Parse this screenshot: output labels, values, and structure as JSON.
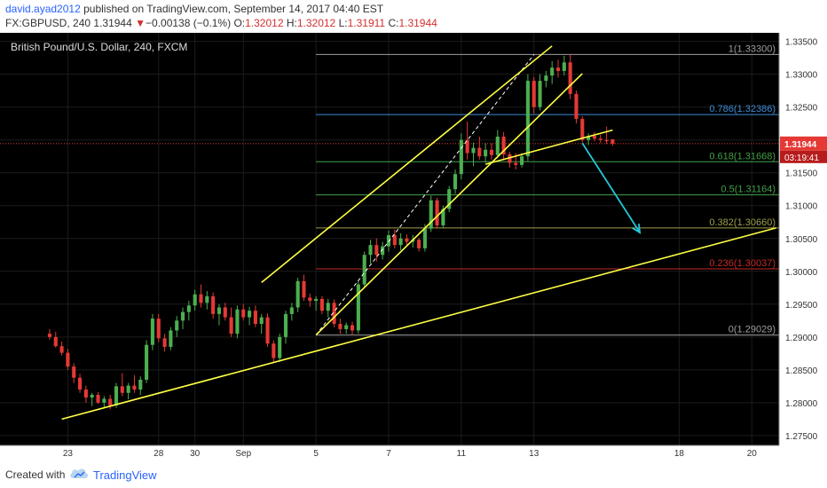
{
  "header": {
    "author": "david.ayad2012",
    "published_text": "published on TradingView.com, September 14, 2017 04:40 EST",
    "symbol": "FX:GBPUSD, 240",
    "last": "1.31944",
    "change_arrow": "▼",
    "change": "−0.00138 (−0.1%)",
    "o_label": "O:",
    "o_value": "1.32012",
    "h_label": "H:",
    "h_value": "1.32012",
    "l_label": "L:",
    "l_value": "1.31911",
    "c_label": "C:",
    "c_value": "1.31944"
  },
  "footer": {
    "created_with": "Created with",
    "brand": "TradingView"
  },
  "chart_data": {
    "type": "candlestick",
    "title": "British Pound/U.S. Dollar, 240, FXCM",
    "ylim": [
      1.2735,
      1.3363
    ],
    "y_ticks": [
      "1.33500",
      "1.33000",
      "1.32500",
      "1.32000",
      "1.31500",
      "1.31000",
      "1.30500",
      "1.30000",
      "1.29500",
      "1.29000",
      "1.28500",
      "1.28000",
      "1.27500"
    ],
    "x_ticks": [
      {
        "label": "23",
        "x": 3.0
      },
      {
        "label": "28",
        "x": 18.0
      },
      {
        "label": "30",
        "x": 24.0
      },
      {
        "label": "Sep",
        "x": 32.0
      },
      {
        "label": "5",
        "x": 44.0
      },
      {
        "label": "7",
        "x": 56.0
      },
      {
        "label": "11",
        "x": 68.0
      },
      {
        "label": "13",
        "x": 80.0
      },
      {
        "label": "18",
        "x": 104.0
      },
      {
        "label": "20",
        "x": 116.0
      }
    ],
    "xlim": [
      -8.2,
      120.5
    ],
    "last_price": {
      "label": "1.31944",
      "value": 1.31944,
      "color": "#e53935"
    },
    "countdown": "03:19:41",
    "fib_levels": [
      {
        "label": "1(1.33300)",
        "value": 1.333,
        "color": "#9e9e9e"
      },
      {
        "label": "0.786(1.32386)",
        "value": 1.32386,
        "color": "#3d8bd8"
      },
      {
        "label": "0.618(1.31668)",
        "value": 1.31668,
        "color": "#43a047"
      },
      {
        "label": "0.5(1.31164)",
        "value": 1.31164,
        "color": "#43a047"
      },
      {
        "label": "0.382(1.30660)",
        "value": 1.3066,
        "color": "#9e9e4a"
      },
      {
        "label": "0.236(1.30037)",
        "value": 1.30037,
        "color": "#c62828"
      },
      {
        "label": "0(1.29029)",
        "value": 1.29029,
        "color": "#9e9e9e"
      }
    ],
    "trendlines": [
      {
        "x1": 2.0,
        "y1": 1.2775,
        "x2": 120.0,
        "y2": 1.3066,
        "color": "#ffff44"
      },
      {
        "x1": 35.0,
        "y1": 1.2983,
        "x2": 83.0,
        "y2": 1.3343,
        "color": "#ffff44"
      },
      {
        "x1": 44.0,
        "y1": 1.2903,
        "x2": 88.0,
        "y2": 1.3301,
        "color": "#ffff44"
      },
      {
        "x1": 72.0,
        "y1": 1.3163,
        "x2": 93.0,
        "y2": 1.3215,
        "color": "#ffff44"
      }
    ],
    "dashed_line": {
      "x1": 44.0,
      "y1": 1.2903,
      "x2": 80.0,
      "y2": 1.333,
      "color": "#ffffff"
    },
    "arrow": {
      "x1": 88.0,
      "y1": 1.3195,
      "x2": 97.5,
      "y2": 1.3059,
      "color": "#26c6da"
    },
    "candles": [
      {
        "o": 1.2905,
        "h": 1.2912,
        "l": 1.2896,
        "c": 1.29
      },
      {
        "o": 1.29,
        "h": 1.2908,
        "l": 1.2884,
        "c": 1.2886
      },
      {
        "o": 1.2886,
        "h": 1.2893,
        "l": 1.2872,
        "c": 1.2876
      },
      {
        "o": 1.2876,
        "h": 1.2882,
        "l": 1.285,
        "c": 1.2855
      },
      {
        "o": 1.2855,
        "h": 1.286,
        "l": 1.283,
        "c": 1.2838
      },
      {
        "o": 1.2838,
        "h": 1.2844,
        "l": 1.2815,
        "c": 1.282
      },
      {
        "o": 1.282,
        "h": 1.2826,
        "l": 1.28,
        "c": 1.2808
      },
      {
        "o": 1.2808,
        "h": 1.2815,
        "l": 1.2795,
        "c": 1.2812
      },
      {
        "o": 1.2812,
        "h": 1.2816,
        "l": 1.2798,
        "c": 1.28
      },
      {
        "o": 1.28,
        "h": 1.281,
        "l": 1.2792,
        "c": 1.2806
      },
      {
        "o": 1.2806,
        "h": 1.2812,
        "l": 1.279,
        "c": 1.2796
      },
      {
        "o": 1.2796,
        "h": 1.283,
        "l": 1.2792,
        "c": 1.2825
      },
      {
        "o": 1.2825,
        "h": 1.2845,
        "l": 1.281,
        "c": 1.2815
      },
      {
        "o": 1.2815,
        "h": 1.283,
        "l": 1.2805,
        "c": 1.2826
      },
      {
        "o": 1.2826,
        "h": 1.2842,
        "l": 1.2815,
        "c": 1.282
      },
      {
        "o": 1.282,
        "h": 1.284,
        "l": 1.2812,
        "c": 1.2835
      },
      {
        "o": 1.2835,
        "h": 1.2895,
        "l": 1.283,
        "c": 1.2888
      },
      {
        "o": 1.2888,
        "h": 1.2935,
        "l": 1.288,
        "c": 1.2928
      },
      {
        "o": 1.2928,
        "h": 1.2935,
        "l": 1.2892,
        "c": 1.2898
      },
      {
        "o": 1.2898,
        "h": 1.2905,
        "l": 1.2878,
        "c": 1.2885
      },
      {
        "o": 1.2885,
        "h": 1.2915,
        "l": 1.288,
        "c": 1.291
      },
      {
        "o": 1.291,
        "h": 1.2932,
        "l": 1.29,
        "c": 1.2925
      },
      {
        "o": 1.2925,
        "h": 1.2945,
        "l": 1.2912,
        "c": 1.2938
      },
      {
        "o": 1.2938,
        "h": 1.2955,
        "l": 1.2925,
        "c": 1.2948
      },
      {
        "o": 1.2948,
        "h": 1.2972,
        "l": 1.294,
        "c": 1.2965
      },
      {
        "o": 1.2965,
        "h": 1.298,
        "l": 1.2945,
        "c": 1.2952
      },
      {
        "o": 1.2952,
        "h": 1.297,
        "l": 1.2942,
        "c": 1.2962
      },
      {
        "o": 1.2962,
        "h": 1.2968,
        "l": 1.2928,
        "c": 1.2935
      },
      {
        "o": 1.2935,
        "h": 1.295,
        "l": 1.2918,
        "c": 1.2945
      },
      {
        "o": 1.2945,
        "h": 1.2952,
        "l": 1.2925,
        "c": 1.293
      },
      {
        "o": 1.293,
        "h": 1.2945,
        "l": 1.29,
        "c": 1.2905
      },
      {
        "o": 1.2905,
        "h": 1.2948,
        "l": 1.2898,
        "c": 1.2942
      },
      {
        "o": 1.2942,
        "h": 1.295,
        "l": 1.2925,
        "c": 1.293
      },
      {
        "o": 1.293,
        "h": 1.2946,
        "l": 1.2918,
        "c": 1.294
      },
      {
        "o": 1.294,
        "h": 1.2948,
        "l": 1.2915,
        "c": 1.292
      },
      {
        "o": 1.292,
        "h": 1.2935,
        "l": 1.2905,
        "c": 1.293
      },
      {
        "o": 1.293,
        "h": 1.2936,
        "l": 1.2885,
        "c": 1.289
      },
      {
        "o": 1.289,
        "h": 1.2895,
        "l": 1.2862,
        "c": 1.2868
      },
      {
        "o": 1.2868,
        "h": 1.2905,
        "l": 1.2862,
        "c": 1.29
      },
      {
        "o": 1.29,
        "h": 1.294,
        "l": 1.289,
        "c": 1.2935
      },
      {
        "o": 1.2935,
        "h": 1.2952,
        "l": 1.2925,
        "c": 1.2945
      },
      {
        "o": 1.2945,
        "h": 1.299,
        "l": 1.2938,
        "c": 1.2985
      },
      {
        "o": 1.2985,
        "h": 1.2995,
        "l": 1.2955,
        "c": 1.296
      },
      {
        "o": 1.296,
        "h": 1.2966,
        "l": 1.2946,
        "c": 1.2955
      },
      {
        "o": 1.2955,
        "h": 1.2962,
        "l": 1.294,
        "c": 1.2958
      },
      {
        "o": 1.2958,
        "h": 1.2962,
        "l": 1.2935,
        "c": 1.294
      },
      {
        "o": 1.294,
        "h": 1.2958,
        "l": 1.293,
        "c": 1.2952
      },
      {
        "o": 1.2952,
        "h": 1.2957,
        "l": 1.2915,
        "c": 1.292
      },
      {
        "o": 1.292,
        "h": 1.2928,
        "l": 1.2905,
        "c": 1.2912
      },
      {
        "o": 1.2912,
        "h": 1.2922,
        "l": 1.2905,
        "c": 1.2918
      },
      {
        "o": 1.2918,
        "h": 1.2923,
        "l": 1.2903,
        "c": 1.291
      },
      {
        "o": 1.291,
        "h": 1.2985,
        "l": 1.2905,
        "c": 1.298
      },
      {
        "o": 1.298,
        "h": 1.303,
        "l": 1.2975,
        "c": 1.3025
      },
      {
        "o": 1.3025,
        "h": 1.3048,
        "l": 1.3012,
        "c": 1.304
      },
      {
        "o": 1.304,
        "h": 1.305,
        "l": 1.3015,
        "c": 1.3025
      },
      {
        "o": 1.3025,
        "h": 1.3045,
        "l": 1.3018,
        "c": 1.3038
      },
      {
        "o": 1.3038,
        "h": 1.3062,
        "l": 1.303,
        "c": 1.3055
      },
      {
        "o": 1.3055,
        "h": 1.3064,
        "l": 1.3035,
        "c": 1.304
      },
      {
        "o": 1.304,
        "h": 1.3058,
        "l": 1.3032,
        "c": 1.305
      },
      {
        "o": 1.305,
        "h": 1.3056,
        "l": 1.304,
        "c": 1.3045
      },
      {
        "o": 1.3045,
        "h": 1.3055,
        "l": 1.3036,
        "c": 1.3048
      },
      {
        "o": 1.3048,
        "h": 1.3051,
        "l": 1.303,
        "c": 1.3035
      },
      {
        "o": 1.3035,
        "h": 1.3072,
        "l": 1.303,
        "c": 1.3065
      },
      {
        "o": 1.3065,
        "h": 1.3115,
        "l": 1.306,
        "c": 1.3108
      },
      {
        "o": 1.3108,
        "h": 1.3112,
        "l": 1.3065,
        "c": 1.307
      },
      {
        "o": 1.307,
        "h": 1.31,
        "l": 1.3066,
        "c": 1.3095
      },
      {
        "o": 1.3095,
        "h": 1.313,
        "l": 1.309,
        "c": 1.3125
      },
      {
        "o": 1.3125,
        "h": 1.3155,
        "l": 1.3118,
        "c": 1.3148
      },
      {
        "o": 1.3148,
        "h": 1.321,
        "l": 1.314,
        "c": 1.32
      },
      {
        "o": 1.32,
        "h": 1.3228,
        "l": 1.317,
        "c": 1.318
      },
      {
        "o": 1.318,
        "h": 1.3196,
        "l": 1.316,
        "c": 1.3188
      },
      {
        "o": 1.3188,
        "h": 1.3205,
        "l": 1.317,
        "c": 1.3175
      },
      {
        "o": 1.3175,
        "h": 1.3195,
        "l": 1.3165,
        "c": 1.3185
      },
      {
        "o": 1.3185,
        "h": 1.3195,
        "l": 1.317,
        "c": 1.3177
      },
      {
        "o": 1.3177,
        "h": 1.3215,
        "l": 1.3172,
        "c": 1.3205
      },
      {
        "o": 1.3205,
        "h": 1.3212,
        "l": 1.317,
        "c": 1.3178
      },
      {
        "o": 1.3178,
        "h": 1.3182,
        "l": 1.3158,
        "c": 1.3165
      },
      {
        "o": 1.3165,
        "h": 1.318,
        "l": 1.3155,
        "c": 1.3162
      },
      {
        "o": 1.3162,
        "h": 1.318,
        "l": 1.3158,
        "c": 1.3175
      },
      {
        "o": 1.3175,
        "h": 1.33,
        "l": 1.3168,
        "c": 1.329
      },
      {
        "o": 1.329,
        "h": 1.3296,
        "l": 1.324,
        "c": 1.325
      },
      {
        "o": 1.325,
        "h": 1.33,
        "l": 1.3245,
        "c": 1.329
      },
      {
        "o": 1.329,
        "h": 1.3305,
        "l": 1.328,
        "c": 1.3298
      },
      {
        "o": 1.3298,
        "h": 1.332,
        "l": 1.3285,
        "c": 1.331
      },
      {
        "o": 1.331,
        "h": 1.3322,
        "l": 1.3295,
        "c": 1.3305
      },
      {
        "o": 1.3305,
        "h": 1.3328,
        "l": 1.3298,
        "c": 1.3318
      },
      {
        "o": 1.3318,
        "h": 1.333,
        "l": 1.3262,
        "c": 1.327
      },
      {
        "o": 1.327,
        "h": 1.3275,
        "l": 1.3225,
        "c": 1.3232
      },
      {
        "o": 1.3232,
        "h": 1.3236,
        "l": 1.3196,
        "c": 1.32
      },
      {
        "o": 1.32,
        "h": 1.321,
        "l": 1.3192,
        "c": 1.3206
      },
      {
        "o": 1.3206,
        "h": 1.3212,
        "l": 1.3198,
        "c": 1.3202
      },
      {
        "o": 1.3202,
        "h": 1.3208,
        "l": 1.3195,
        "c": 1.32
      },
      {
        "o": 1.32,
        "h": 1.322,
        "l": 1.3194,
        "c": 1.3198
      },
      {
        "o": 1.3201,
        "h": 1.3201,
        "l": 1.3191,
        "c": 1.3194
      }
    ]
  }
}
